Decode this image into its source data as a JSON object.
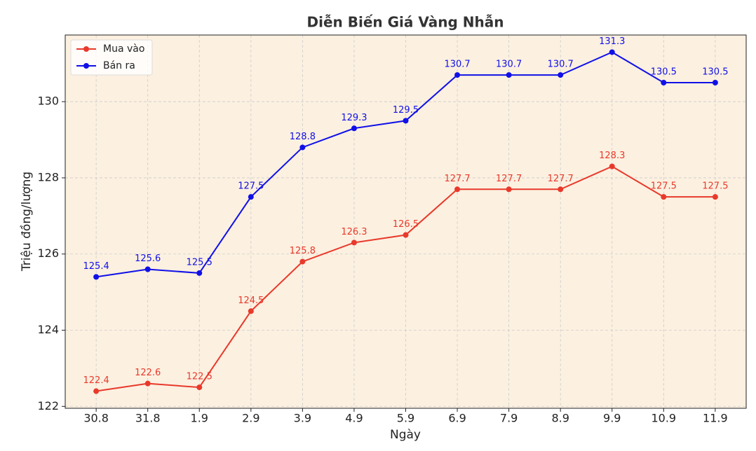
{
  "chart_data": {
    "type": "line",
    "title": "Diễn Biến Giá Vàng Nhẫn",
    "x_label": "Ngày",
    "y_label": "Triệu đồng/lượng",
    "categories": [
      "30.8",
      "31.8",
      "1.9",
      "2.9",
      "3.9",
      "4.9",
      "5.9",
      "6.9",
      "7.9",
      "8.9",
      "9.9",
      "10.9",
      "11.9"
    ],
    "series": [
      {
        "name": "Mua vào",
        "color": "#e8392b",
        "values": [
          122.4,
          122.6,
          122.5,
          124.5,
          125.8,
          126.3,
          126.5,
          127.7,
          127.7,
          127.7,
          128.3,
          127.5,
          127.5
        ]
      },
      {
        "name": "Bán ra",
        "color": "#1010e8",
        "values": [
          125.4,
          125.6,
          125.5,
          127.5,
          128.8,
          129.3,
          129.5,
          130.7,
          130.7,
          130.7,
          131.3,
          130.5,
          130.5
        ]
      }
    ],
    "ylim": [
      121.95,
      131.75
    ],
    "yticks": [
      122,
      124,
      126,
      128,
      130
    ],
    "grid": true,
    "legend": "upper left",
    "background": "#fcf0e0"
  }
}
